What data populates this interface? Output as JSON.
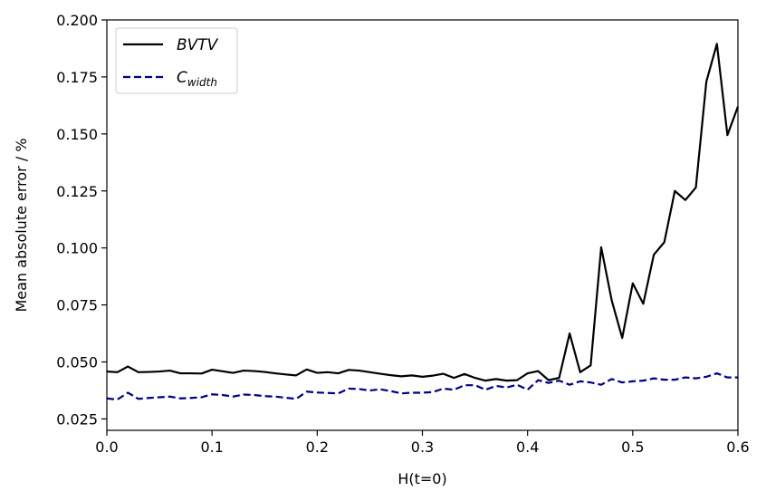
{
  "chart_data": {
    "type": "line",
    "xlabel": "H(t=0)",
    "ylabel": "Mean absolute error / %",
    "xlim": [
      0.0,
      0.6
    ],
    "ylim": [
      0.02,
      0.2
    ],
    "xticks": [
      "0.0",
      "0.1",
      "0.2",
      "0.3",
      "0.4",
      "0.5",
      "0.6"
    ],
    "yticks": [
      "0.025",
      "0.050",
      "0.075",
      "0.100",
      "0.125",
      "0.150",
      "0.175",
      "0.200"
    ],
    "grid": false,
    "legend_position": "top-left",
    "x": [
      0.0,
      0.01,
      0.02,
      0.03,
      0.04,
      0.05,
      0.06,
      0.07,
      0.08,
      0.09,
      0.1,
      0.11,
      0.12,
      0.13,
      0.14,
      0.15,
      0.16,
      0.17,
      0.18,
      0.19,
      0.2,
      0.21,
      0.22,
      0.23,
      0.24,
      0.25,
      0.26,
      0.27,
      0.28,
      0.29,
      0.3,
      0.31,
      0.32,
      0.33,
      0.34,
      0.35,
      0.36,
      0.37,
      0.38,
      0.39,
      0.4,
      0.41,
      0.42,
      0.43,
      0.44,
      0.45,
      0.46,
      0.47,
      0.48,
      0.49,
      0.5,
      0.51,
      0.52,
      0.53,
      0.54,
      0.55,
      0.56,
      0.57,
      0.58,
      0.59,
      0.6
    ],
    "series": [
      {
        "name": "BVTV",
        "name_main": "BVTV",
        "name_sub": "",
        "color": "#000000",
        "style": "solid",
        "values": [
          0.0458,
          0.0455,
          0.048,
          0.0455,
          0.0456,
          0.0458,
          0.0462,
          0.045,
          0.045,
          0.0449,
          0.0466,
          0.0459,
          0.0452,
          0.0462,
          0.046,
          0.0456,
          0.045,
          0.0445,
          0.0441,
          0.0467,
          0.0452,
          0.0455,
          0.045,
          0.0465,
          0.0462,
          0.0455,
          0.0448,
          0.0442,
          0.0437,
          0.0441,
          0.0435,
          0.044,
          0.0448,
          0.043,
          0.0447,
          0.043,
          0.0418,
          0.0425,
          0.0418,
          0.042,
          0.045,
          0.046,
          0.042,
          0.043,
          0.0625,
          0.0455,
          0.0485,
          0.1003,
          0.077,
          0.0605,
          0.0845,
          0.0755,
          0.097,
          0.1025,
          0.125,
          0.121,
          0.1265,
          0.173,
          0.1895,
          0.1495,
          0.162
        ]
      },
      {
        "name": "Cwidth",
        "name_main": "C",
        "name_sub": "width",
        "color": "#00008b",
        "style": "dashed",
        "values": [
          0.034,
          0.0335,
          0.0365,
          0.0338,
          0.0342,
          0.0345,
          0.0348,
          0.034,
          0.0342,
          0.0345,
          0.0358,
          0.0355,
          0.0348,
          0.0357,
          0.0355,
          0.035,
          0.0348,
          0.0343,
          0.0338,
          0.037,
          0.0366,
          0.0364,
          0.0362,
          0.0383,
          0.0381,
          0.0375,
          0.038,
          0.0372,
          0.0362,
          0.0365,
          0.0365,
          0.0368,
          0.0383,
          0.0378,
          0.0398,
          0.0398,
          0.0378,
          0.0395,
          0.0388,
          0.04,
          0.0378,
          0.042,
          0.0408,
          0.0418,
          0.04,
          0.0415,
          0.041,
          0.04,
          0.0425,
          0.041,
          0.0415,
          0.0418,
          0.0428,
          0.0422,
          0.0422,
          0.0432,
          0.0428,
          0.0435,
          0.045,
          0.0432,
          0.0432
        ]
      }
    ]
  }
}
